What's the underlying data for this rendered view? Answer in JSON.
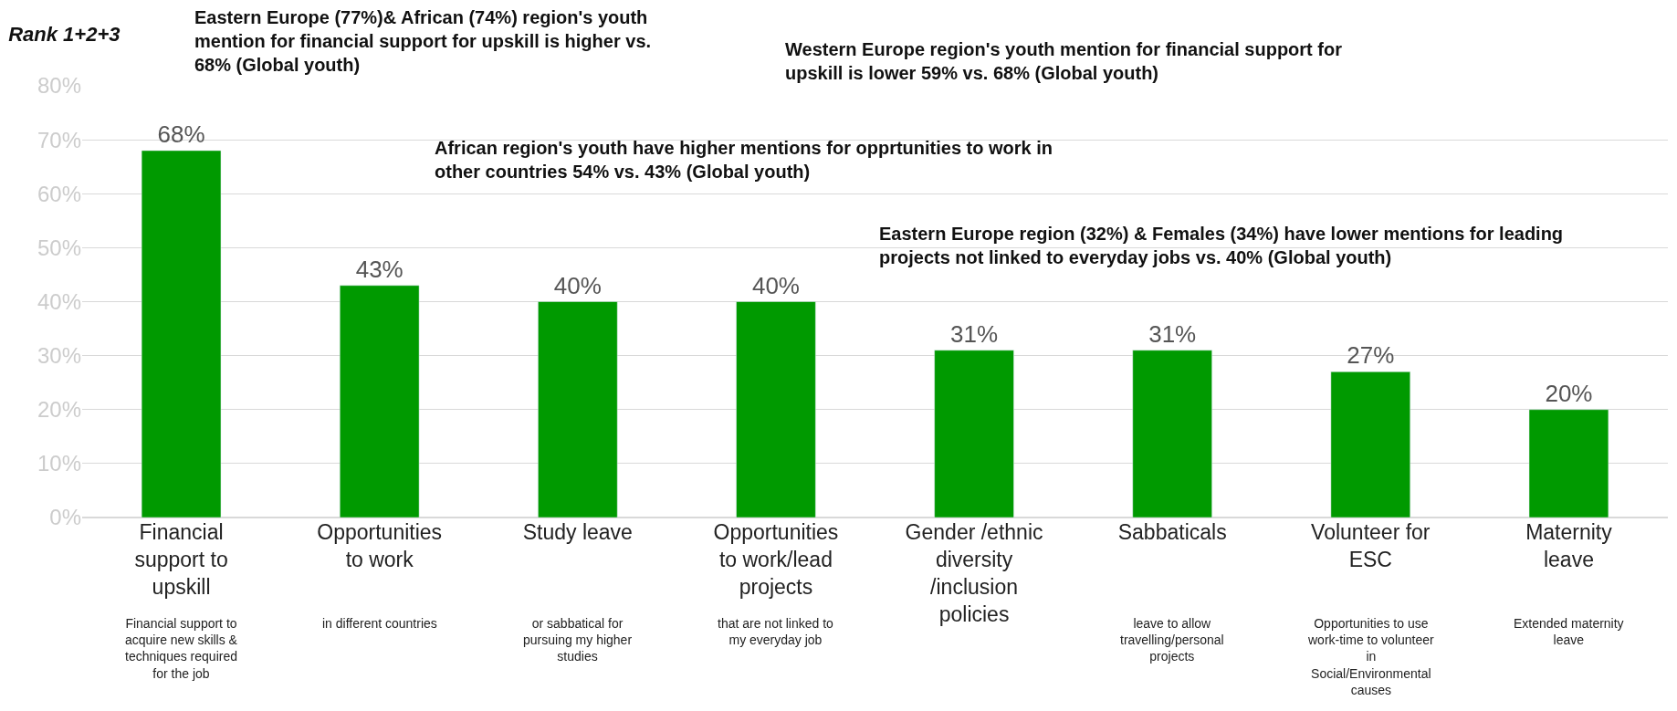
{
  "chart_data": {
    "type": "bar",
    "title": "Rank 1+2+3",
    "categories": [
      "Financial support to upskill",
      "Opportunities to work",
      "Study leave",
      "Opportunities to work/lead projects",
      "Gender /ethnic diversity /inclusion policies",
      "Sabbaticals",
      "Volunteer for ESC",
      "Maternity leave"
    ],
    "values": [
      68,
      43,
      40,
      40,
      31,
      31,
      27,
      20
    ],
    "value_labels": [
      "68%",
      "43%",
      "40%",
      "40%",
      "31%",
      "31%",
      "27%",
      "20%"
    ],
    "color": "#009a00",
    "ylim": [
      0,
      80
    ],
    "yticks": [
      {
        "value": 0,
        "label": "0%"
      },
      {
        "value": 10,
        "label": "10%"
      },
      {
        "value": 20,
        "label": "20%"
      },
      {
        "value": 30,
        "label": "30%"
      },
      {
        "value": 40,
        "label": "40%"
      },
      {
        "value": 50,
        "label": "50%"
      },
      {
        "value": 60,
        "label": "60%"
      },
      {
        "value": 70,
        "label": "70%"
      },
      {
        "value": 80,
        "label": "80%"
      }
    ],
    "grid": "y",
    "annotations": [
      "Eastern Europe (77%)& African (74%) region's youth mention for financial support for upskill is higher vs. 68% (Global youth)",
      "Western Europe region's youth mention for financial support for upskill is lower 59% vs. 68% (Global youth)",
      "African region's youth have higher mentions for opprtunities to work in other countries 54% vs. 43% (Global youth)",
      "Eastern Europe region (32%) & Females (34%) have lower mentions for leading projects not linked to everyday jobs vs. 40% (Global youth)",
      "Financial support to acquire new skills & techniques required for the job",
      "in different countries",
      "or sabbatical for pursuing my higher studies",
      "that are not linked to my everyday job",
      "leave to allow travelling/personal projects",
      "Opportunities to use work-time to volunteer in Social/Environmental causes",
      "Extended maternity leave"
    ]
  }
}
